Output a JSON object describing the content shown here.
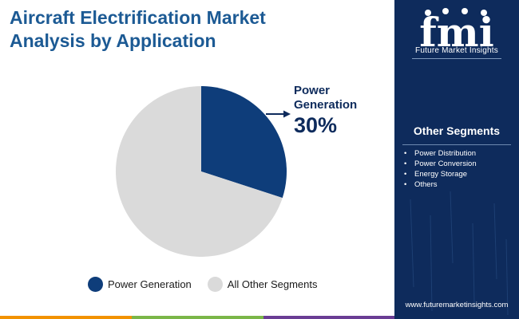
{
  "title_line1": "Aircraft Electrification Market",
  "title_line2": "Analysis by Application",
  "chart_data": {
    "type": "pie",
    "slices": [
      {
        "label": "Power Generation",
        "value": 30,
        "color": "#0e3d7a"
      },
      {
        "label": "All Other Segments",
        "value": 70,
        "color": "#dadada"
      }
    ],
    "callout": {
      "label": "Power Generation",
      "value_text": "30%"
    },
    "legend": [
      {
        "label": "Power Generation",
        "color": "#0e3d7a"
      },
      {
        "label": "All Other Segments",
        "color": "#dadada"
      }
    ],
    "legend_position": "bottom"
  },
  "sidebar": {
    "brand_name": "Future Market Insights",
    "logo_text": "fmi",
    "segments_title": "Other Segments",
    "segments": [
      "Power Distribution",
      "Power Conversion",
      "Energy Storage",
      "Others"
    ],
    "website": "www.futuremarketinsights.com"
  },
  "colors": {
    "title": "#1c5a94",
    "panel": "#0e2b5c",
    "accent_dark": "#0e3d7a",
    "accent_light": "#dadada",
    "bar_orange": "#f29200",
    "bar_green": "#7ab648",
    "bar_purple": "#6a3d94"
  }
}
